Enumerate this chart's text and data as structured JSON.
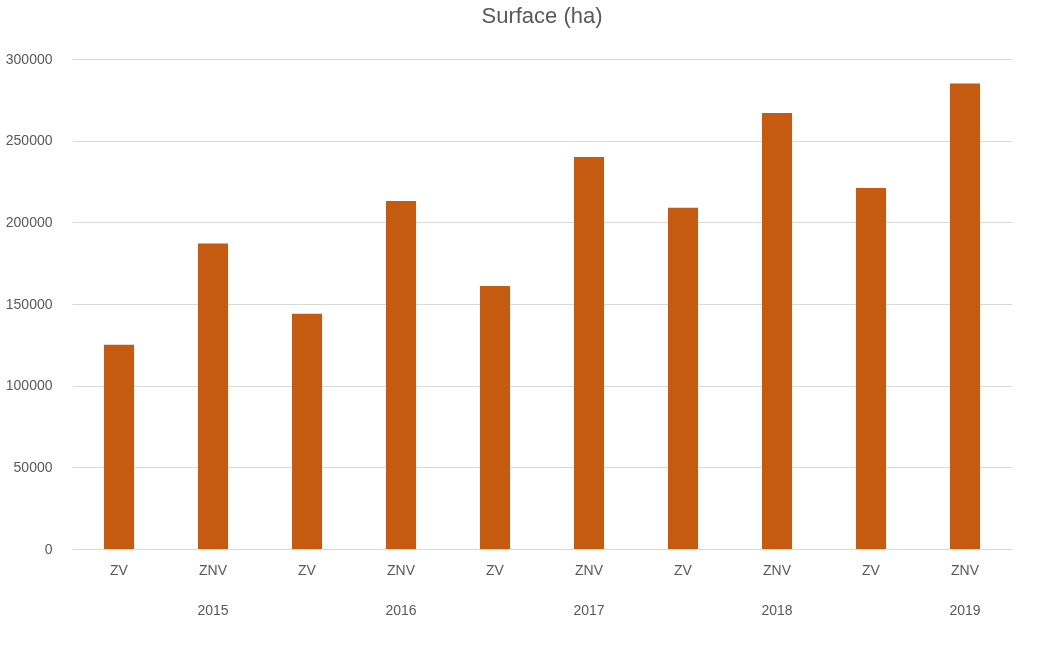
{
  "chart_data": {
    "type": "bar",
    "title": "Surface (ha)",
    "categories": [
      "ZV",
      "ZNV",
      "ZV",
      "ZNV",
      "ZV",
      "ZNV",
      "ZV",
      "ZNV",
      "ZV",
      "ZNV"
    ],
    "values": [
      125000,
      187000,
      144000,
      213000,
      161000,
      240000,
      209000,
      267000,
      221000,
      285000
    ],
    "color": "#c55a11",
    "ylim": [
      0,
      300000
    ],
    "yticks": [
      0,
      50000,
      100000,
      150000,
      200000,
      250000,
      300000
    ],
    "grid": "y",
    "annotations": [
      "2015",
      "2016",
      "2017",
      "2018",
      "2019"
    ]
  }
}
